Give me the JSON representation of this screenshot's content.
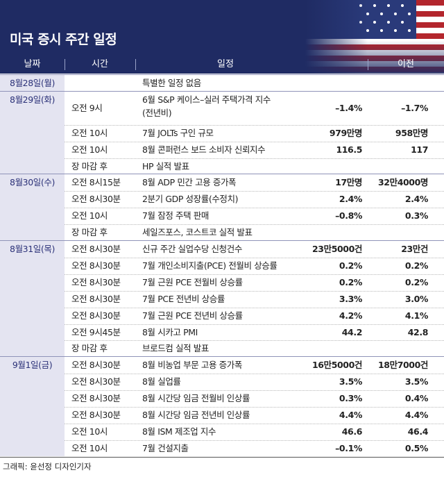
{
  "header": {
    "title": "미국 증시 주간 일정"
  },
  "table": {
    "columns": [
      "날짜",
      "시간",
      "일정",
      "이전"
    ],
    "groups": [
      {
        "date": "8월28일(월)",
        "rows": [
          {
            "event": [
              "특별한 일정 없음"
            ]
          }
        ]
      },
      {
        "date": "8월29일(화)",
        "rows": [
          {
            "time": "오전 9시",
            "event": [
              "6월 S&P 케이스–실러 주택가격 지수",
              "(전년비)"
            ],
            "forecast": "–1.4%",
            "previous": "–1.7%"
          },
          {
            "time": "오전 10시",
            "event": [
              "7월 JOLTs 구인 규모"
            ],
            "forecast": "979만명",
            "previous": "958만명"
          },
          {
            "time": "오전 10시",
            "event": [
              "8월 콘퍼런스 보드 소비자 신뢰지수"
            ],
            "forecast": "116.5",
            "previous": "117"
          },
          {
            "time": "장 마감 후",
            "event": [
              "HP 실적 발표"
            ]
          }
        ]
      },
      {
        "date": "8월30일(수)",
        "rows": [
          {
            "time": "오전 8시15분",
            "event": [
              "8월 ADP 민간 고용 증가폭"
            ],
            "forecast": "17만명",
            "previous": "32만4000명"
          },
          {
            "time": "오전 8시30분",
            "event": [
              "2분기 GDP 성장률(수정치)"
            ],
            "forecast": "2.4%",
            "previous": "2.4%"
          },
          {
            "time": "오전 10시",
            "event": [
              "7월 잠정 주택 판매"
            ],
            "forecast": "–0.8%",
            "previous": "0.3%"
          },
          {
            "time": "장 마감 후",
            "event": [
              "세일즈포스, 코스트코 실적 발표"
            ]
          }
        ]
      },
      {
        "date": "8월31일(목)",
        "rows": [
          {
            "time": "오전 8시30분",
            "event": [
              "신규 주간 실업수당 신청건수"
            ],
            "forecast": "23만5000건",
            "previous": "23만건"
          },
          {
            "time": "오전 8시30분",
            "event": [
              "7월 개인소비지출(PCE) 전월비 상승률"
            ],
            "forecast": "0.2%",
            "previous": "0.2%"
          },
          {
            "time": "오전 8시30분",
            "event": [
              "7월 근원 PCE 전월비 상승률"
            ],
            "forecast": "0.2%",
            "previous": "0.2%"
          },
          {
            "time": "오전 8시30분",
            "event": [
              "7월 PCE 전년비 상승률"
            ],
            "forecast": "3.3%",
            "previous": "3.0%"
          },
          {
            "time": "오전 8시30분",
            "event": [
              "7월 근원 PCE 전년비 상승률"
            ],
            "forecast": "4.2%",
            "previous": "4.1%"
          },
          {
            "time": "오전 9시45분",
            "event": [
              "8월 시카고 PMI"
            ],
            "forecast": "44.2",
            "previous": "42.8"
          },
          {
            "time": "장 마감 후",
            "event": [
              "브로드컴 실적 발표"
            ]
          }
        ]
      },
      {
        "date": "9월1일(금)",
        "rows": [
          {
            "time": "오전 8시30분",
            "event": [
              "8월 비농업 부문 고용 증가폭"
            ],
            "forecast": "16만5000건",
            "previous": "18만7000건"
          },
          {
            "time": "오전 8시30분",
            "event": [
              "8월 실업률"
            ],
            "forecast": "3.5%",
            "previous": "3.5%"
          },
          {
            "time": "오전 8시30분",
            "event": [
              "8월 시간당 임금 전월비 인상률"
            ],
            "forecast": "0.3%",
            "previous": "0.4%"
          },
          {
            "time": "오전 8시30분",
            "event": [
              "8월 시간당 임금 전년비 인상률"
            ],
            "forecast": "4.4%",
            "previous": "4.4%"
          },
          {
            "time": "오전 10시",
            "event": [
              "8월 ISM 제조업 지수"
            ],
            "forecast": "46.6",
            "previous": "46.4"
          },
          {
            "time": "오전 10시",
            "event": [
              "7월 건설지출"
            ],
            "forecast": "–0.1%",
            "previous": "0.5%"
          }
        ]
      }
    ]
  },
  "footer": "그래픽: 윤선정 디자인기자"
}
